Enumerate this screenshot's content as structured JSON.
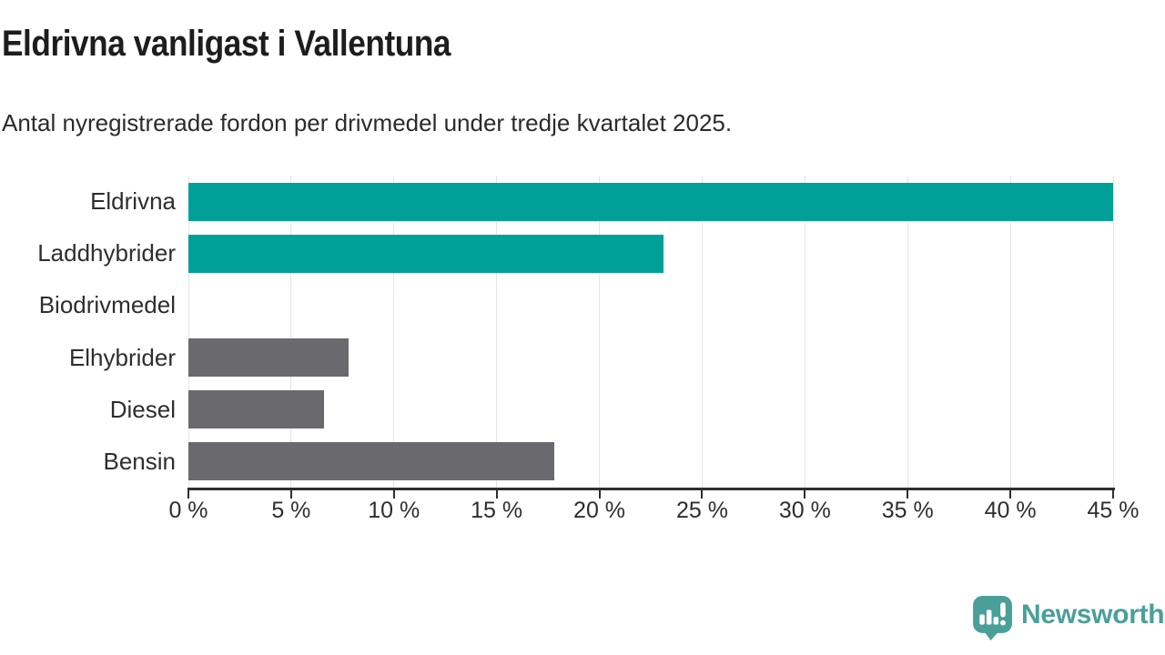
{
  "header": {
    "title": "Eldrivna vanligast i Vallentuna",
    "subtitle": "Antal nyregistrerade fordon per drivmedel under tredje kvartalet 2025."
  },
  "chart_data": {
    "type": "bar",
    "orientation": "horizontal",
    "categories": [
      "Eldrivna",
      "Laddhybrider",
      "Biodrivmedel",
      "Elhybrider",
      "Diesel",
      "Bensin"
    ],
    "values": [
      45.0,
      23.1,
      0,
      7.8,
      6.6,
      17.8
    ],
    "unit": "%",
    "bar_colors": [
      "#00a099",
      "#00a099",
      "#6a6a6e",
      "#6a6a6e",
      "#6a6a6e",
      "#6a6a6e"
    ],
    "highlight_color": "#00a099",
    "default_color": "#6a6a6e",
    "xlim": [
      0,
      45
    ],
    "xticks": [
      0,
      5,
      10,
      15,
      20,
      25,
      30,
      35,
      40,
      45
    ],
    "xtick_labels": [
      "0 %",
      "5 %",
      "10 %",
      "15 %",
      "20 %",
      "25 %",
      "30 %",
      "35 %",
      "40 %",
      "45 %"
    ],
    "grid": true,
    "legend": false,
    "title": "Eldrivna vanligast i Vallentuna",
    "xlabel": "",
    "ylabel": ""
  },
  "colors": {
    "grid": "#e4e4e4",
    "axis": "#2e2e2e",
    "text": "#2e2e2e",
    "title_text": "#1d1d1d"
  },
  "footer": {
    "brand": "Newsworthy",
    "brand_color": "#4a9f99",
    "icon": "newsworthy-speech-bubble-bar-chart-icon"
  }
}
